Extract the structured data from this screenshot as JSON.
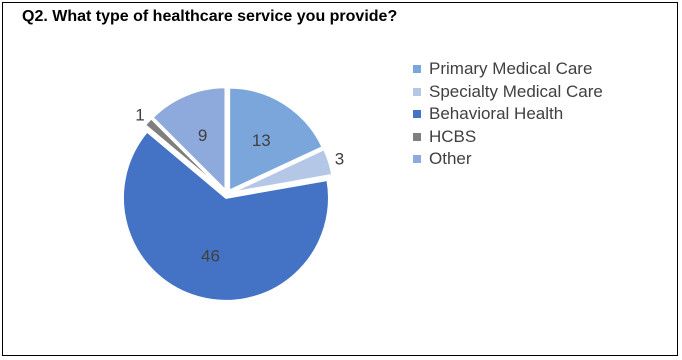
{
  "question_title": "Q2. What type of healthcare service you provide?",
  "chart_data": {
    "type": "pie",
    "categories": [
      "Primary Medical Care",
      "Specialty Medical Care",
      "Behavioral Health",
      "HCBS",
      "Other"
    ],
    "values": [
      13,
      3,
      46,
      1,
      9
    ],
    "colors": [
      "#7AA6DB",
      "#B4C7E7",
      "#4472C4",
      "#7F7F7F",
      "#8EA9DB"
    ],
    "data_labels": [
      "13",
      "3",
      "46",
      "1",
      "9"
    ],
    "title": "",
    "legend_position": "right",
    "exploded": true
  }
}
